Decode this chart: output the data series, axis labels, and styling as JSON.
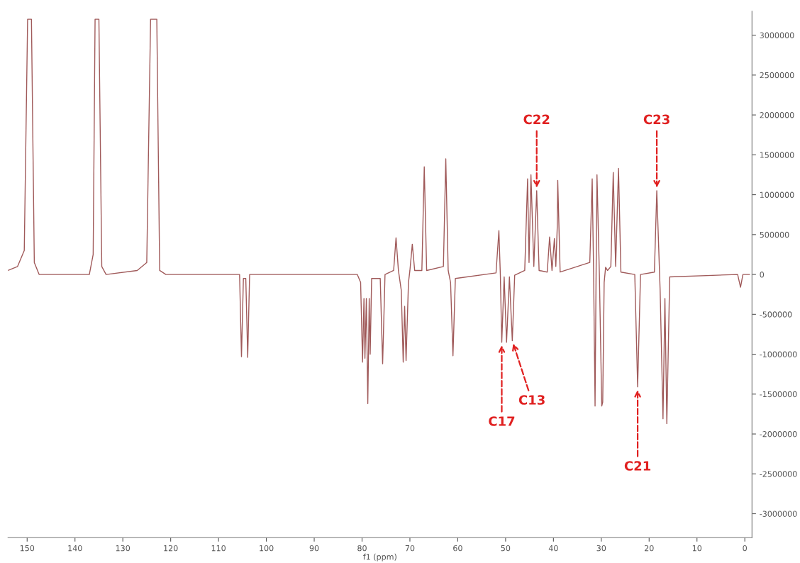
{
  "chart_data": {
    "type": "line",
    "xlabel": "f1 (ppm)",
    "xlim": [
      154,
      -1.5
    ],
    "xticks": [
      150,
      140,
      130,
      120,
      110,
      100,
      90,
      80,
      70,
      60,
      50,
      40,
      30,
      20,
      10,
      0
    ],
    "ylim": [
      -3300000,
      3300000
    ],
    "yticks": [
      -3000000,
      -2500000,
      -2000000,
      -1500000,
      -1000000,
      -500000,
      0,
      500000,
      1000000,
      1500000,
      2000000,
      2500000,
      3000000
    ],
    "grid": false,
    "legend": false,
    "marker": "none",
    "line_style": "solid",
    "series": [
      {
        "color": "#a05a5a",
        "x": [
          154,
          152,
          150.6,
          149.9,
          149.5,
          149.1,
          148.5,
          147.5,
          137,
          136.2,
          135.8,
          135.4,
          135.0,
          134.4,
          133.5,
          127,
          125,
          124.2,
          123.5,
          122.9,
          122.3,
          121,
          105.6,
          105.2,
          104.8,
          104.3,
          103.9,
          103.5,
          81,
          80.3,
          79.9,
          79.6,
          79.4,
          79.1,
          78.8,
          78.5,
          78.3,
          78.0,
          76.2,
          75.7,
          75.2,
          73.4,
          72.9,
          72.4,
          71.8,
          71.4,
          71.1,
          70.8,
          70.3,
          70.0,
          69.5,
          69.0,
          67.5,
          67.0,
          66.5,
          63.0,
          62.5,
          62.0,
          61.5,
          61.0,
          60.5,
          52.0,
          51.4,
          51.1,
          50.8,
          50.3,
          49.8,
          49.2,
          48.6,
          48.1,
          46.0,
          45.4,
          45.1,
          44.7,
          44.1,
          43.5,
          43.0,
          41.3,
          40.8,
          40.3,
          39.8,
          39.5,
          39.2,
          39.1,
          38.6,
          32.4,
          31.9,
          31.6,
          31.3,
          31.1,
          30.9,
          30.4,
          29.9,
          29.7,
          29.4,
          29.1,
          28.7,
          28.0,
          27.5,
          27.0,
          26.4,
          25.9,
          23.0,
          22.4,
          21.8,
          18.9,
          18.4,
          17.7,
          17.1,
          16.7,
          16.3,
          15.7,
          1.5,
          0.9,
          0.4,
          -1.0
        ],
        "values": [
          50000,
          100000,
          300000,
          3200000,
          null,
          3200000,
          150000,
          0,
          0,
          250000,
          3200000,
          null,
          3200000,
          100000,
          0,
          50000,
          150000,
          3200000,
          null,
          3200000,
          50000,
          0,
          0,
          -1030000,
          -50000,
          -50000,
          -1040000,
          0,
          0,
          -100000,
          -1100000,
          -300000,
          -1050000,
          -300000,
          -1620000,
          -300000,
          -1000000,
          -50000,
          -50000,
          -1120000,
          0,
          50000,
          460000,
          50000,
          -200000,
          -1100000,
          -400000,
          -1080000,
          -100000,
          50000,
          380000,
          50000,
          50000,
          1350000,
          50000,
          100000,
          1450000,
          50000,
          -100000,
          -1020000,
          -50000,
          20000,
          550000,
          0,
          -850000,
          -30000,
          -850000,
          -30000,
          -830000,
          -10000,
          50000,
          1200000,
          150000,
          1250000,
          100000,
          1050000,
          50000,
          30000,
          470000,
          50000,
          450000,
          100000,
          600000,
          1180000,
          30000,
          150000,
          1200000,
          0,
          -1650000,
          -100000,
          1250000,
          0,
          -1650000,
          -1600000,
          -100000,
          90000,
          50000,
          100000,
          1280000,
          100000,
          1330000,
          30000,
          0,
          -1410000,
          0,
          30000,
          1050000,
          -200000,
          -1810000,
          -300000,
          -1870000,
          -30000,
          0,
          -160000,
          0,
          0
        ]
      }
    ],
    "annotations": [
      {
        "text": "C22",
        "x": 43.5,
        "y": 1050000
      },
      {
        "text": "C23",
        "x": 18.4,
        "y": 1050000
      },
      {
        "text": "C17",
        "x": 50.8,
        "y": -850000
      },
      {
        "text": "C13",
        "x": 48.6,
        "y": -830000
      },
      {
        "text": "C21",
        "x": 22.4,
        "y": -1410000
      }
    ]
  }
}
